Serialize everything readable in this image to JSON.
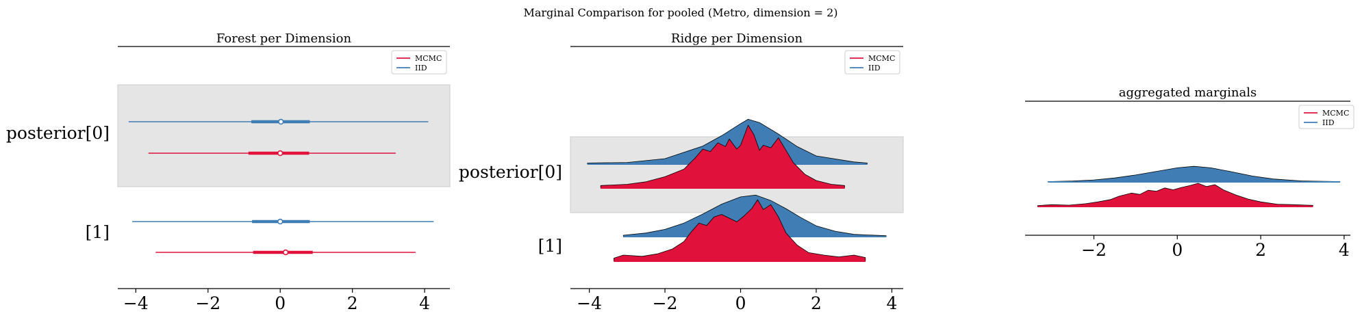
{
  "figure": {
    "suptitle": "Marginal Comparison for pooled (Metro, dimension = 2)"
  },
  "colors": {
    "mcmc": "#e0113a",
    "iid": "#3f7db4",
    "highlight": "#e5e5e5",
    "outline": "#000000"
  },
  "chart_data": [
    {
      "type": "forest",
      "title": "Forest per Dimension",
      "xlim": [
        -4.5,
        4.7
      ],
      "xticks": [
        -4,
        -2,
        0,
        2,
        4
      ],
      "xtick_labels": [
        "−4",
        "−2",
        "0",
        "2",
        "4"
      ],
      "ylabels": [
        "posterior[0]",
        "[1]"
      ],
      "legend": {
        "entries": [
          "MCMC",
          "IID"
        ],
        "placement": "upper-right"
      },
      "highlight_rows": [
        0
      ],
      "series": [
        {
          "name": "IID",
          "row": 0,
          "min": -4.2,
          "q1": -0.8,
          "median": 0.02,
          "q3": 0.82,
          "max": 4.1
        },
        {
          "name": "MCMC",
          "row": 0,
          "min": -3.65,
          "q1": -0.88,
          "median": 0.0,
          "q3": 0.8,
          "max": 3.2
        },
        {
          "name": "IID",
          "row": 1,
          "min": -4.1,
          "q1": -0.78,
          "median": 0.0,
          "q3": 0.82,
          "max": 4.25
        },
        {
          "name": "MCMC",
          "row": 1,
          "min": -3.45,
          "q1": -0.75,
          "median": 0.15,
          "q3": 0.9,
          "max": 3.75
        }
      ]
    },
    {
      "type": "ridgeline",
      "title": "Ridge per Dimension",
      "xlim": [
        -4.5,
        4.3
      ],
      "xticks": [
        -4,
        -2,
        0,
        2,
        4
      ],
      "xtick_labels": [
        "−4",
        "−2",
        "0",
        "2",
        "4"
      ],
      "ylabels": [
        "posterior[0]",
        "[1]"
      ],
      "legend": {
        "entries": [
          "MCMC",
          "IID"
        ],
        "placement": "upper-right"
      },
      "highlight_rows": [
        0
      ],
      "series": [
        {
          "name": "IID",
          "row": 0,
          "x": [
            -4.05,
            -3.0,
            -2.0,
            -1.0,
            -0.5,
            0.0,
            0.2,
            0.5,
            1.0,
            1.5,
            2.0,
            3.0,
            3.35
          ],
          "y": [
            0.02,
            0.03,
            0.1,
            0.33,
            0.52,
            0.74,
            0.82,
            0.76,
            0.55,
            0.32,
            0.15,
            0.04,
            0.02
          ]
        },
        {
          "name": "MCMC",
          "row": 0,
          "x": [
            -3.7,
            -3.0,
            -2.5,
            -2.0,
            -1.5,
            -1.2,
            -1.0,
            -0.8,
            -0.6,
            -0.4,
            -0.3,
            -0.1,
            0.0,
            0.2,
            0.35,
            0.5,
            0.6,
            0.8,
            1.0,
            1.2,
            1.4,
            1.7,
            2.0,
            2.4,
            2.75
          ],
          "y": [
            0.04,
            0.06,
            0.1,
            0.18,
            0.3,
            0.48,
            0.62,
            0.58,
            0.72,
            0.66,
            0.78,
            0.62,
            0.68,
            1.0,
            0.85,
            0.6,
            0.68,
            0.64,
            0.8,
            0.6,
            0.4,
            0.22,
            0.12,
            0.06,
            0.04
          ]
        },
        {
          "name": "IID",
          "row": 1,
          "x": [
            -3.1,
            -2.5,
            -2.0,
            -1.5,
            -1.0,
            -0.5,
            0.0,
            0.4,
            0.8,
            1.2,
            1.6,
            2.0,
            2.5,
            3.0,
            3.85
          ],
          "y": [
            0.03,
            0.08,
            0.16,
            0.3,
            0.5,
            0.72,
            0.88,
            0.92,
            0.8,
            0.62,
            0.42,
            0.24,
            0.12,
            0.05,
            0.02
          ]
        },
        {
          "name": "MCMC",
          "row": 1,
          "x": [
            -3.35,
            -3.1,
            -2.6,
            -2.2,
            -1.8,
            -1.5,
            -1.3,
            -1.1,
            -0.9,
            -0.7,
            -0.5,
            -0.3,
            -0.1,
            0.1,
            0.3,
            0.45,
            0.6,
            0.8,
            1.0,
            1.2,
            1.5,
            1.8,
            2.2,
            2.6,
            3.0,
            3.3
          ],
          "y": [
            0.05,
            0.1,
            0.08,
            0.12,
            0.2,
            0.32,
            0.48,
            0.62,
            0.58,
            0.72,
            0.76,
            0.7,
            0.64,
            0.74,
            0.86,
            1.0,
            0.84,
            0.92,
            0.72,
            0.46,
            0.26,
            0.14,
            0.1,
            0.07,
            0.1,
            0.06
          ]
        }
      ]
    },
    {
      "type": "ridgeline",
      "title": "aggregated marginals",
      "xlim": [
        -3.65,
        4.15
      ],
      "xticks": [
        -2,
        0,
        2,
        4
      ],
      "xtick_labels": [
        "−2",
        "0",
        "2",
        "4"
      ],
      "ylabels": [],
      "legend": {
        "entries": [
          "MCMC",
          "IID"
        ],
        "placement": "upper-right"
      },
      "highlight_rows": [],
      "series": [
        {
          "name": "IID",
          "row": 0,
          "x": [
            -3.1,
            -2.5,
            -2.0,
            -1.5,
            -1.0,
            -0.5,
            0.0,
            0.4,
            0.8,
            1.3,
            1.8,
            2.3,
            3.0,
            3.9
          ],
          "y": [
            0.02,
            0.06,
            0.12,
            0.24,
            0.42,
            0.64,
            0.86,
            0.95,
            0.86,
            0.62,
            0.36,
            0.18,
            0.06,
            0.02
          ]
        },
        {
          "name": "MCMC",
          "row": 0,
          "x": [
            -3.35,
            -3.0,
            -2.6,
            -2.2,
            -1.9,
            -1.6,
            -1.4,
            -1.1,
            -0.9,
            -0.7,
            -0.5,
            -0.3,
            -0.1,
            0.1,
            0.3,
            0.5,
            0.7,
            0.9,
            1.1,
            1.4,
            1.7,
            2.0,
            2.4,
            2.8,
            3.25
          ],
          "y": [
            0.04,
            0.08,
            0.06,
            0.12,
            0.2,
            0.3,
            0.44,
            0.58,
            0.52,
            0.7,
            0.66,
            0.8,
            0.72,
            0.82,
            0.9,
            1.0,
            0.86,
            0.94,
            0.72,
            0.5,
            0.32,
            0.2,
            0.1,
            0.08,
            0.05
          ]
        }
      ]
    }
  ]
}
